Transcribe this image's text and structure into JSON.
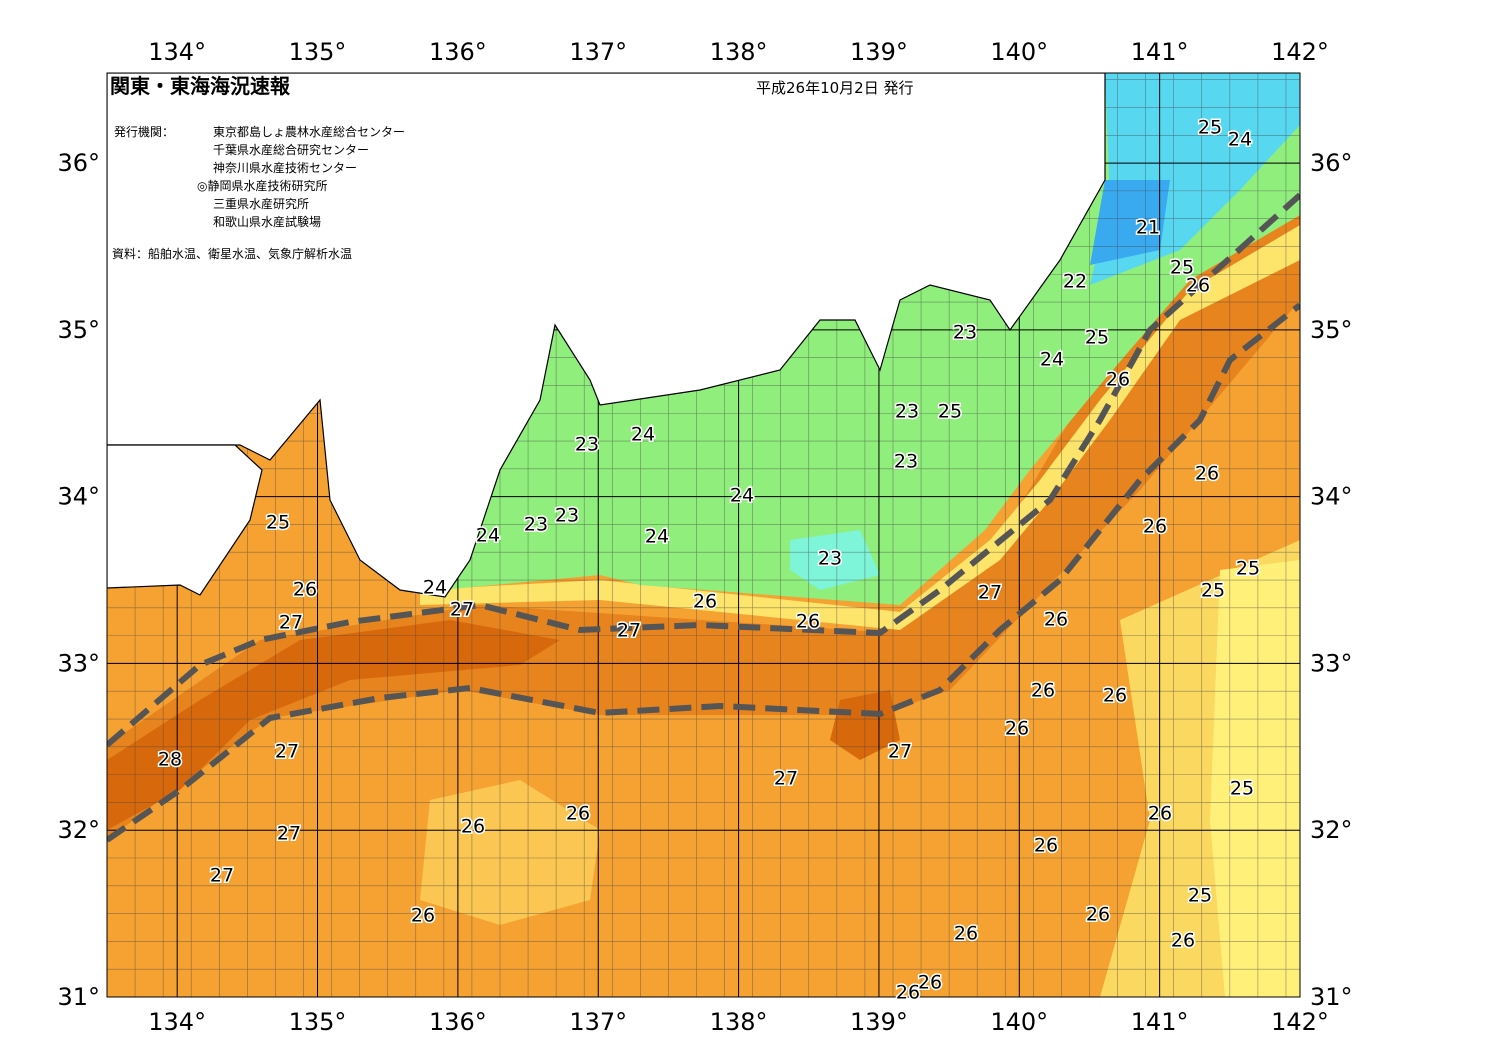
{
  "header": {
    "title": "関東・東海海況速報",
    "date": "平成26年10月2日 発行",
    "issuer_label": "発行機関：",
    "issuers": [
      "東京都島しょ農林水産総合センター",
      "千葉県水産総合研究センター",
      "神奈川県水産技術センター",
      "◎静岡県水産技術研究所",
      "三重県水産研究所",
      "和歌山県水産試験場"
    ],
    "source": "資料：船舶水温、衛星水温、気象庁解析水温"
  },
  "map": {
    "xlim": [
      133.5,
      142
    ],
    "ylim": [
      31,
      36.54
    ],
    "xticks": [
      {
        "value": 134,
        "label": "134°"
      },
      {
        "value": 135,
        "label": "135°"
      },
      {
        "value": 136,
        "label": "136°"
      },
      {
        "value": 137,
        "label": "137°"
      },
      {
        "value": 138,
        "label": "138°"
      },
      {
        "value": 139,
        "label": "139°"
      },
      {
        "value": 140,
        "label": "140°"
      },
      {
        "value": 141,
        "label": "141°"
      },
      {
        "value": 142,
        "label": "142°"
      }
    ],
    "yticks": [
      {
        "value": 31,
        "label": "31°"
      },
      {
        "value": 32,
        "label": "32°"
      },
      {
        "value": 33,
        "label": "33°"
      },
      {
        "value": 34,
        "label": "34°"
      },
      {
        "value": 35,
        "label": "35°"
      },
      {
        "value": 36,
        "label": "36°"
      }
    ],
    "contour_labels": [
      25,
      24,
      21,
      25,
      26,
      22,
      23,
      25,
      24,
      26,
      23,
      25,
      23,
      26,
      24,
      23,
      24,
      25,
      23,
      23,
      24,
      24,
      26,
      23,
      25,
      26,
      24,
      25,
      27,
      27,
      26,
      27,
      26,
      27,
      26,
      26,
      26,
      26,
      27,
      27,
      28,
      27,
      25,
      26,
      26,
      26,
      27,
      26,
      27,
      25,
      26,
      26,
      26,
      26,
      26,
      26
    ]
  }
}
